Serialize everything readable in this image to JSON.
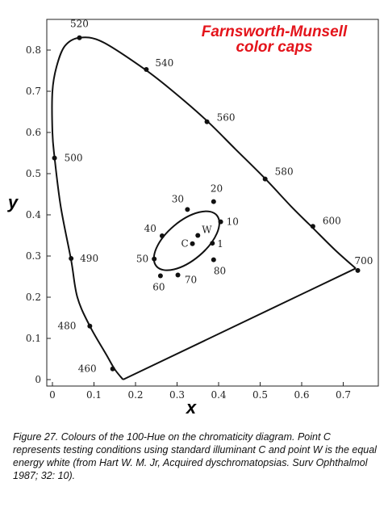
{
  "figure": {
    "title_line1": "Farnsworth-Munsell",
    "title_line2": "color caps",
    "caption": "Figure 27. Colours of the 100-Hue on the chromaticity diagram. Point C represents testing conditions using standard illuminant C and point W is the equal energy white (from Hart W. M. Jr, Acquired dyschromatopsias. Surv Ophthalmol 1987; 32: 10)."
  },
  "chart_data": {
    "type": "scatter",
    "title": "Farnsworth-Munsell color caps",
    "xlabel": "x",
    "ylabel": "y",
    "xlim": [
      0,
      0.8
    ],
    "ylim": [
      0,
      0.9
    ],
    "x_ticks": [
      "0",
      "0.1",
      "0.2",
      "0.3",
      "0.4",
      "0.5",
      "0.6",
      "0.7"
    ],
    "y_ticks": [
      "0",
      "0.1",
      "0.2",
      "0.3",
      "0.4",
      "0.5",
      "0.6",
      "0.7",
      "0.8"
    ],
    "grid": false,
    "spectral_locus": [
      {
        "x": 0.17,
        "y": 0.0
      },
      {
        "x": 0.15,
        "y": 0.025
      },
      {
        "x": 0.13,
        "y": 0.06
      },
      {
        "x": 0.09,
        "y": 0.13
      },
      {
        "x": 0.06,
        "y": 0.2
      },
      {
        "x": 0.045,
        "y": 0.29
      },
      {
        "x": 0.02,
        "y": 0.42
      },
      {
        "x": 0.005,
        "y": 0.54
      },
      {
        "x": 0.0,
        "y": 0.6
      },
      {
        "x": 0.0,
        "y": 0.7
      },
      {
        "x": 0.01,
        "y": 0.76
      },
      {
        "x": 0.03,
        "y": 0.81
      },
      {
        "x": 0.065,
        "y": 0.83
      },
      {
        "x": 0.12,
        "y": 0.82
      },
      {
        "x": 0.22,
        "y": 0.755
      },
      {
        "x": 0.29,
        "y": 0.7
      },
      {
        "x": 0.37,
        "y": 0.63
      },
      {
        "x": 0.44,
        "y": 0.56
      },
      {
        "x": 0.51,
        "y": 0.49
      },
      {
        "x": 0.575,
        "y": 0.42
      },
      {
        "x": 0.625,
        "y": 0.37
      },
      {
        "x": 0.68,
        "y": 0.315
      },
      {
        "x": 0.73,
        "y": 0.27
      }
    ],
    "wavelength_points": [
      {
        "label": "460",
        "x": 0.145,
        "y": 0.026
      },
      {
        "label": "480",
        "x": 0.09,
        "y": 0.13
      },
      {
        "label": "490",
        "x": 0.045,
        "y": 0.294
      },
      {
        "label": "500",
        "x": 0.005,
        "y": 0.538
      },
      {
        "label": "520",
        "x": 0.065,
        "y": 0.83
      },
      {
        "label": "540",
        "x": 0.226,
        "y": 0.753
      },
      {
        "label": "560",
        "x": 0.372,
        "y": 0.626
      },
      {
        "label": "580",
        "x": 0.512,
        "y": 0.487
      },
      {
        "label": "600",
        "x": 0.627,
        "y": 0.372
      },
      {
        "label": "700",
        "x": 0.735,
        "y": 0.265
      }
    ],
    "cap_ellipse": {
      "cx": 0.323,
      "cy": 0.337,
      "rx": 0.095,
      "ry": 0.047,
      "rotation_deg": 40
    },
    "cap_points": [
      {
        "label": "1",
        "x": 0.385,
        "y": 0.331
      },
      {
        "label": "10",
        "x": 0.405,
        "y": 0.383
      },
      {
        "label": "20",
        "x": 0.388,
        "y": 0.432
      },
      {
        "label": "30",
        "x": 0.325,
        "y": 0.413
      },
      {
        "label": "40",
        "x": 0.264,
        "y": 0.349
      },
      {
        "label": "50",
        "x": 0.245,
        "y": 0.293
      },
      {
        "label": "60",
        "x": 0.26,
        "y": 0.252
      },
      {
        "label": "70",
        "x": 0.302,
        "y": 0.254
      },
      {
        "label": "80",
        "x": 0.388,
        "y": 0.291
      }
    ],
    "reference_points": [
      {
        "label": "C",
        "x": 0.337,
        "y": 0.33
      },
      {
        "label": "W",
        "x": 0.35,
        "y": 0.35
      }
    ]
  }
}
